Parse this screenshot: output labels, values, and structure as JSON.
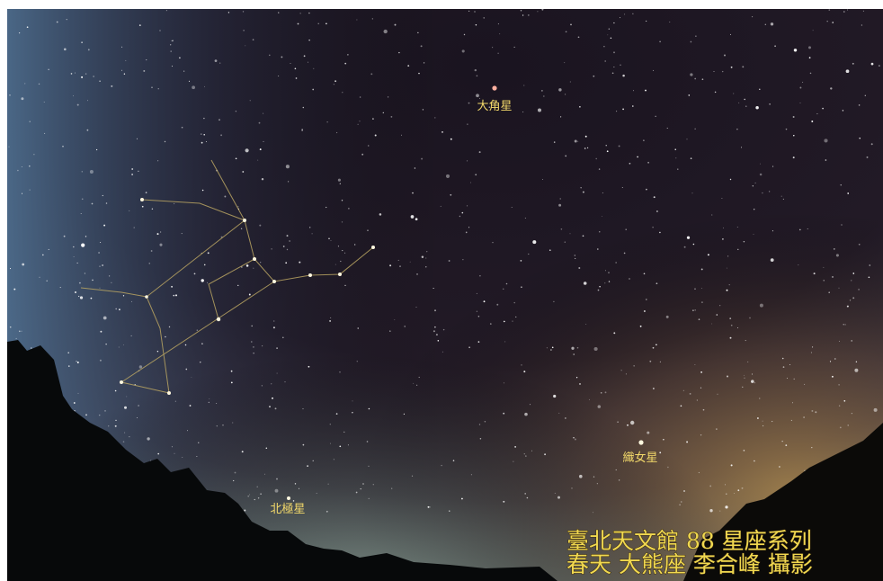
{
  "labels": {
    "arcturus": "大角星",
    "vega": "織女星",
    "polaris": "北極星"
  },
  "caption": {
    "line1": "臺北天文館 88 星座系列",
    "line2": "春天 大熊座 李合峰 攝影"
  }
}
